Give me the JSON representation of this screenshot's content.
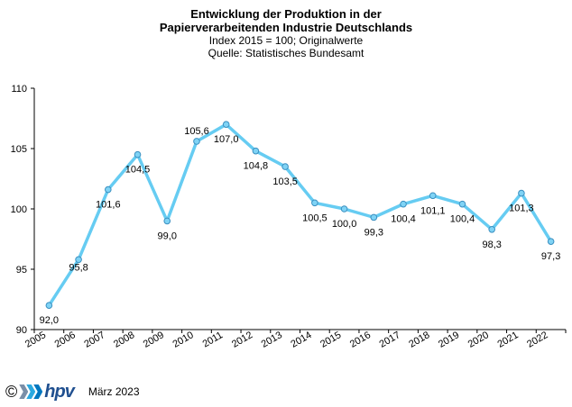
{
  "title": {
    "line1": "Entwicklung der Produktion in der",
    "line2": "Papierverarbeitenden Industrie Deutschlands",
    "line3": "Index 2015 = 100; Originalwerte",
    "line4": "Quelle: Statistisches Bundesamt"
  },
  "chart_data": {
    "type": "line",
    "categories": [
      "2005",
      "2006",
      "2007",
      "2008",
      "2009",
      "2010",
      "2011",
      "2012",
      "2013",
      "2014",
      "2015",
      "2016",
      "2017",
      "2018",
      "2019",
      "2020",
      "2021",
      "2022"
    ],
    "values": [
      92.0,
      95.8,
      101.6,
      104.5,
      99.0,
      105.6,
      107.0,
      104.8,
      103.5,
      100.5,
      100.0,
      99.3,
      100.4,
      101.1,
      100.4,
      98.3,
      101.3,
      97.3
    ],
    "labels": [
      "92,0",
      "95,8",
      "101,6",
      "104,5",
      "99,0",
      "105,6",
      "107,0",
      "104,8",
      "103,5",
      "100,5",
      "100,0",
      "99,3",
      "100,4",
      "101,1",
      "100,4",
      "98,3",
      "101,3",
      "97,3"
    ],
    "y_ticks": [
      90,
      95,
      100,
      105,
      110
    ],
    "y_tick_labels": [
      "90",
      "95",
      "100",
      "105",
      "110"
    ],
    "ylim": [
      90,
      110
    ],
    "line_color": "#66ccf2",
    "marker_color": "#7fd3f5",
    "marker_edge_color": "#3a8fc0",
    "xlabel": "",
    "ylabel": ""
  },
  "footer": {
    "copyright": "©",
    "logo_text": "hpv",
    "date": "März 2023"
  }
}
